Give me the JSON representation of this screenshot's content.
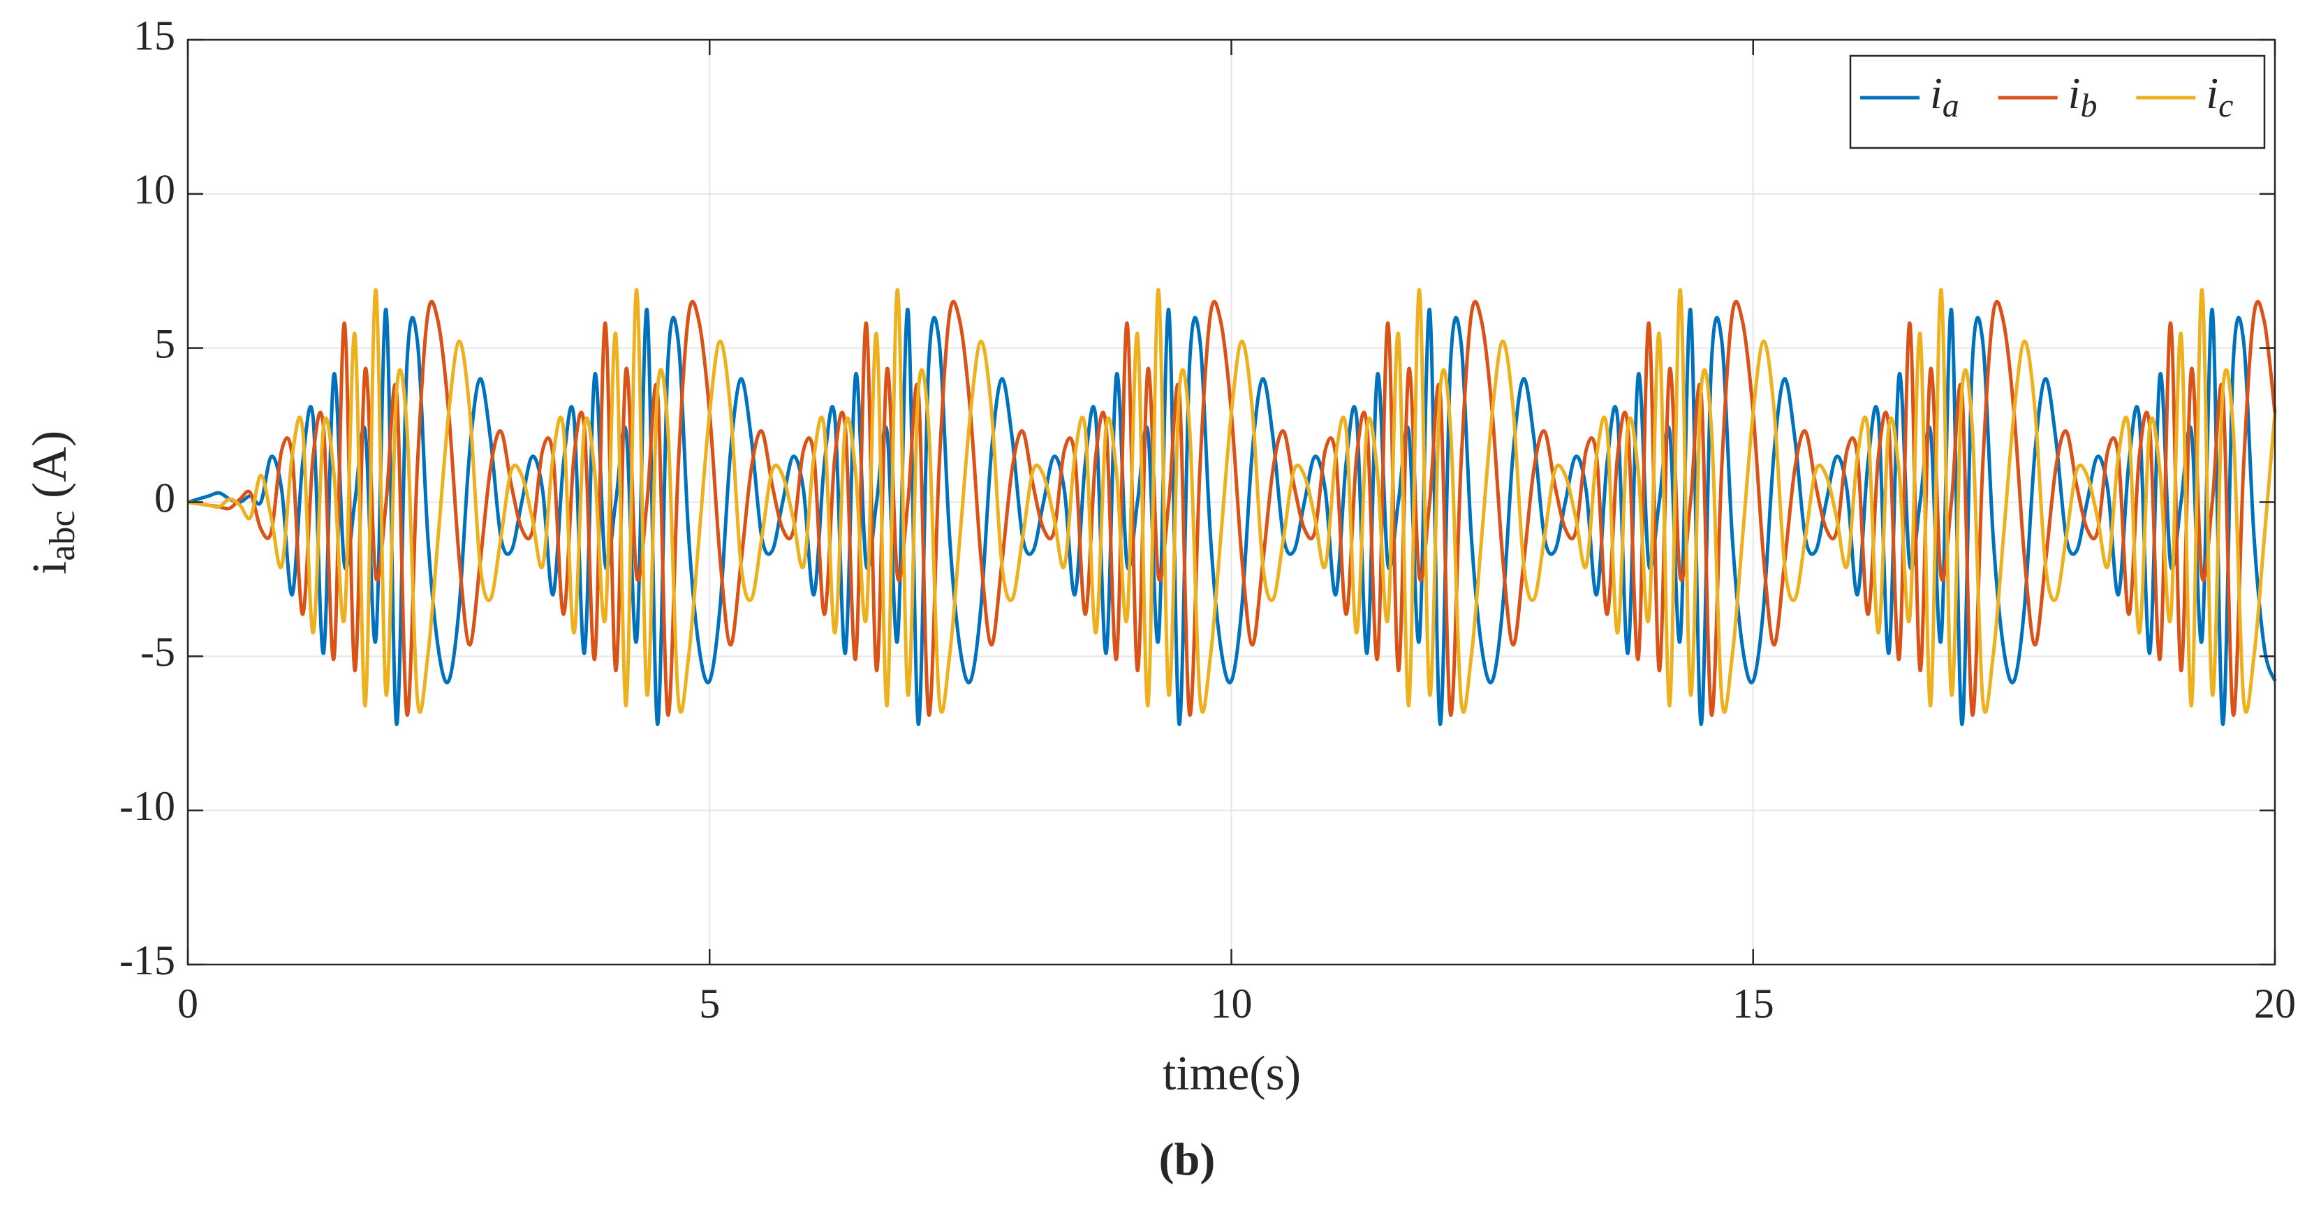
{
  "chart_data": {
    "type": "line",
    "xlabel": "time(s)",
    "ylabel": "iabc (A)",
    "caption": "(b)",
    "xlim": [
      0,
      20
    ],
    "xticks": [
      0,
      5,
      10,
      15,
      20
    ],
    "ylim": [
      -15,
      15
    ],
    "yticks": [
      -15,
      -10,
      -5,
      0,
      5,
      10,
      15
    ],
    "grid": true,
    "legend": "upper right",
    "x": [
      0,
      0.1,
      0.2,
      0.3,
      0.4,
      0.5,
      0.6,
      0.7,
      0.8,
      0.9,
      1,
      1.1,
      1.2,
      1.3,
      1.4,
      1.5,
      1.6,
      1.7,
      1.8,
      1.9,
      2,
      2.1,
      2.2,
      2.3,
      2.4,
      2.5,
      2.6,
      2.7,
      2.8,
      2.9,
      3,
      3.1,
      3.2,
      3.3,
      3.4,
      3.5,
      3.6,
      3.7,
      3.8,
      3.9,
      4,
      4.1,
      4.2,
      4.3,
      4.4,
      4.5,
      4.6,
      4.7,
      4.8,
      4.9,
      5,
      5.1,
      5.2,
      5.3,
      5.4,
      5.5,
      5.6,
      5.7,
      5.8,
      5.9,
      6,
      6.1,
      6.2,
      6.3,
      6.4,
      6.5,
      6.6,
      6.7,
      6.8,
      6.9,
      7,
      7.1,
      7.2,
      7.3,
      7.4,
      7.5,
      7.6,
      7.7,
      7.8,
      7.9,
      8,
      8.1,
      8.2,
      8.3,
      8.4,
      8.5,
      8.6,
      8.7,
      8.8,
      8.9,
      9,
      9.1,
      9.2,
      9.3,
      9.4,
      9.5,
      9.6,
      9.7,
      9.8,
      9.9,
      10,
      10.1,
      10.2,
      10.3,
      10.4,
      10.5,
      10.6,
      10.7,
      10.8,
      10.9,
      11,
      11.1,
      11.2,
      11.3,
      11.4,
      11.5,
      11.6,
      11.7,
      11.8,
      11.9,
      12,
      12.1,
      12.2,
      12.3,
      12.4,
      12.5,
      12.6,
      12.7,
      12.8,
      12.9,
      13,
      13.1,
      13.2,
      13.3,
      13.4,
      13.5,
      13.6,
      13.7,
      13.8,
      13.9,
      14,
      14.1,
      14.2,
      14.3,
      14.4,
      14.5,
      14.6,
      14.7,
      14.8,
      14.9,
      15,
      15.1,
      15.2,
      15.3,
      15.4,
      15.5,
      15.6,
      15.7,
      15.8,
      15.9,
      16,
      16.1,
      16.2,
      16.3,
      16.4,
      16.5,
      16.6,
      16.7,
      16.8,
      16.9,
      17,
      17.1,
      17.2,
      17.3,
      17.4,
      17.5,
      17.6,
      17.7,
      17.8,
      17.9,
      18,
      18.1,
      18.2,
      18.3,
      18.4,
      18.5,
      18.6,
      18.7,
      18.8,
      18.9,
      19,
      19.1,
      19.2,
      19.3,
      19.4,
      19.5,
      19.6,
      19.7,
      19.8,
      19.9,
      20
    ],
    "series": [
      {
        "name": "ia",
        "color": "#0072bd",
        "values": [
          0,
          0.1,
          0.2,
          0.3,
          0.1,
          0,
          0.2,
          0,
          1.48,
          0.38,
          -3.0,
          1.27,
          2.76,
          -4.9,
          4.14,
          -2.02,
          0,
          2.29,
          -4.5,
          6.24,
          -7.2,
          4.5,
          5.21,
          -1.13,
          -4.75,
          -5.8,
          -3.41,
          1.61,
          4.0,
          2.06,
          -1.15,
          -1.58,
          0,
          1.48,
          0.38,
          -3.0,
          1.27,
          2.76,
          -4.9,
          4.14,
          -2.02,
          0,
          2.29,
          -4.5,
          6.24,
          -7.2,
          4.5,
          5.21,
          -1.13,
          -4.75,
          -5.8,
          -3.41,
          1.61,
          4.0,
          2.06,
          -1.15,
          -1.58,
          0,
          1.48,
          0.38,
          -3.0,
          1.27,
          2.76,
          -4.9,
          4.14,
          -2.02,
          0,
          2.29,
          -4.5,
          6.24,
          -7.2,
          4.5,
          5.21,
          -1.13,
          -4.75,
          -5.8,
          -3.41,
          1.61,
          4.0,
          2.06,
          -1.15,
          -1.58,
          0,
          1.48,
          0.38,
          -3.0,
          1.27,
          2.76,
          -4.9,
          4.14,
          -2.02,
          0,
          2.29,
          -4.5,
          6.24,
          -7.2,
          4.5,
          5.21,
          -1.13,
          -4.75,
          -5.8,
          -3.41,
          1.61,
          4.0,
          2.06,
          -1.15,
          -1.58,
          0,
          1.48,
          0.38,
          -3.0,
          1.27,
          2.76,
          -4.9,
          4.14,
          -2.02,
          0,
          2.29,
          -4.5,
          6.24,
          -7.2,
          4.5,
          5.21,
          -1.13,
          -4.75,
          -5.8,
          -3.41,
          1.61,
          4.0,
          2.06,
          -1.15,
          -1.58,
          0,
          1.48,
          0.38,
          -3.0,
          1.27,
          2.76,
          -4.9,
          4.14,
          -2.02,
          0,
          2.29,
          -4.5,
          6.24,
          -7.2,
          4.5,
          5.21,
          -1.13,
          -4.75,
          -5.8,
          -3.41,
          1.61,
          4.0,
          2.06,
          -1.15,
          -1.58,
          0,
          1.48,
          0.38,
          -3.0,
          1.27,
          2.76,
          -4.9,
          4.14,
          -2.02,
          0,
          2.29,
          -4.5,
          6.24,
          -7.2,
          4.5,
          5.21,
          -1.13,
          -4.75,
          -5.8,
          -3.41,
          1.61,
          4.0,
          2.06,
          -1.15,
          -1.58,
          0,
          1.48,
          0.38,
          -3.0,
          1.27,
          2.76,
          -4.9,
          4.14,
          -2.02,
          0,
          2.29,
          -4.5,
          6.24,
          -7.2,
          4.5,
          5.21,
          -1.13,
          -4.75,
          -5.8
        ]
      },
      {
        "name": "ib",
        "color": "#d95319",
        "values": [
          0,
          -0.05,
          -0.1,
          -0.15,
          -0.2,
          0.1,
          0.3,
          -0.87,
          -0.96,
          1.69,
          1.5,
          -3.64,
          1.47,
          2.45,
          -5.07,
          5.81,
          -5.46,
          4.31,
          -2.39,
          0,
          3.6,
          -6.89,
          1.18,
          6.11,
          5.83,
          2.9,
          -1.81,
          -4.63,
          -2.0,
          1.09,
          2.3,
          0.55,
          -0.87,
          -0.96,
          1.69,
          1.5,
          -3.64,
          1.47,
          2.45,
          -5.07,
          5.81,
          -5.46,
          4.31,
          -2.39,
          0,
          3.6,
          -6.89,
          1.18,
          6.11,
          5.83,
          2.9,
          -1.81,
          -4.63,
          -2.0,
          1.09,
          2.3,
          0.55,
          -0.87,
          -0.96,
          1.69,
          1.5,
          -3.64,
          1.47,
          2.45,
          -5.07,
          5.81,
          -5.46,
          4.31,
          -2.39,
          0,
          3.6,
          -6.89,
          1.18,
          6.11,
          5.83,
          2.9,
          -1.81,
          -4.63,
          -2.0,
          1.09,
          2.3,
          0.55,
          -0.87,
          -0.96,
          1.69,
          1.5,
          -3.64,
          1.47,
          2.45,
          -5.07,
          5.81,
          -5.46,
          4.31,
          -2.39,
          0,
          3.6,
          -6.89,
          1.18,
          6.11,
          5.83,
          2.9,
          -1.81,
          -4.63,
          -2.0,
          1.09,
          2.3,
          0.55,
          -0.87,
          -0.96,
          1.69,
          1.5,
          -3.64,
          1.47,
          2.45,
          -5.07,
          5.81,
          -5.46,
          4.31,
          -2.39,
          0,
          3.6,
          -6.89,
          1.18,
          6.11,
          5.83,
          2.9,
          -1.81,
          -4.63,
          -2.0,
          1.09,
          2.3,
          0.55,
          -0.87,
          -0.96,
          1.69,
          1.5,
          -3.64,
          1.47,
          2.45,
          -5.07,
          5.81,
          -5.46,
          4.31,
          -2.39,
          0,
          3.6,
          -6.89,
          1.18,
          6.11,
          5.83,
          2.9,
          -1.81,
          -4.63,
          -2.0,
          1.09,
          2.3,
          0.55,
          -0.87,
          -0.96,
          1.69,
          1.5,
          -3.64,
          1.47,
          2.45,
          -5.07,
          5.81,
          -5.46,
          4.31,
          -2.39,
          0,
          3.6,
          -6.89,
          1.18,
          6.11,
          5.83,
          2.9,
          -1.81,
          -4.63,
          -2.0,
          1.09,
          2.3,
          0.55,
          -0.87,
          -0.96,
          1.69,
          1.5,
          -3.64,
          1.47,
          2.45,
          -5.07,
          5.81,
          -5.46,
          4.31,
          -2.39,
          0,
          3.6,
          -6.89,
          1.18,
          6.11,
          5.83,
          2.9
        ]
      },
      {
        "name": "ic",
        "color": "#edb120",
        "values": [
          0,
          -0.05,
          -0.1,
          -0.15,
          0.1,
          -0.1,
          -0.5,
          0.87,
          -0.51,
          -2.07,
          1.5,
          2.38,
          -4.24,
          2.45,
          0.94,
          -3.79,
          5.46,
          -6.6,
          6.89,
          -6.24,
          3.6,
          2.39,
          -6.39,
          -4.98,
          -1.08,
          2.9,
          5.22,
          3.02,
          -2.0,
          -3.15,
          -1.15,
          1.03,
          0.87,
          -0.51,
          -2.07,
          1.5,
          2.38,
          -4.24,
          2.45,
          0.94,
          -3.79,
          5.46,
          -6.6,
          6.89,
          -6.24,
          3.6,
          2.39,
          -6.39,
          -4.98,
          -1.08,
          2.9,
          5.22,
          3.02,
          -2.0,
          -3.15,
          -1.15,
          1.03,
          0.87,
          -0.51,
          -2.07,
          1.5,
          2.38,
          -4.24,
          2.45,
          0.94,
          -3.79,
          5.46,
          -6.6,
          6.89,
          -6.24,
          3.6,
          2.39,
          -6.39,
          -4.98,
          -1.08,
          2.9,
          5.22,
          3.02,
          -2.0,
          -3.15,
          -1.15,
          1.03,
          0.87,
          -0.51,
          -2.07,
          1.5,
          2.38,
          -4.24,
          2.45,
          0.94,
          -3.79,
          5.46,
          -6.6,
          6.89,
          -6.24,
          3.6,
          2.39,
          -6.39,
          -4.98,
          -1.08,
          2.9,
          5.22,
          3.02,
          -2.0,
          -3.15,
          -1.15,
          1.03,
          0.87,
          -0.51,
          -2.07,
          1.5,
          2.38,
          -4.24,
          2.45,
          0.94,
          -3.79,
          5.46,
          -6.6,
          6.89,
          -6.24,
          3.6,
          2.39,
          -6.39,
          -4.98,
          -1.08,
          2.9,
          5.22,
          3.02,
          -2.0,
          -3.15,
          -1.15,
          1.03,
          0.87,
          -0.51,
          -2.07,
          1.5,
          2.38,
          -4.24,
          2.45,
          0.94,
          -3.79,
          5.46,
          -6.6,
          6.89,
          -6.24,
          3.6,
          2.39,
          -6.39,
          -4.98,
          -1.08,
          2.9,
          5.22,
          3.02,
          -2.0,
          -3.15,
          -1.15,
          1.03,
          0.87,
          -0.51,
          -2.07,
          1.5,
          2.38,
          -4.24,
          2.45,
          0.94,
          -3.79,
          5.46,
          -6.6,
          6.89,
          -6.24,
          3.6,
          2.39,
          -6.39,
          -4.98,
          -1.08,
          2.9,
          5.22,
          3.02,
          -2.0,
          -3.15,
          -1.15,
          1.03,
          0.87,
          -0.51,
          -2.07,
          1.5,
          2.38,
          -4.24,
          2.45,
          0.94,
          -3.79,
          5.46,
          -6.6,
          6.89,
          -6.24,
          3.6,
          2.39,
          -6.39,
          -4.98,
          -1.08,
          2.9
        ]
      }
    ]
  }
}
